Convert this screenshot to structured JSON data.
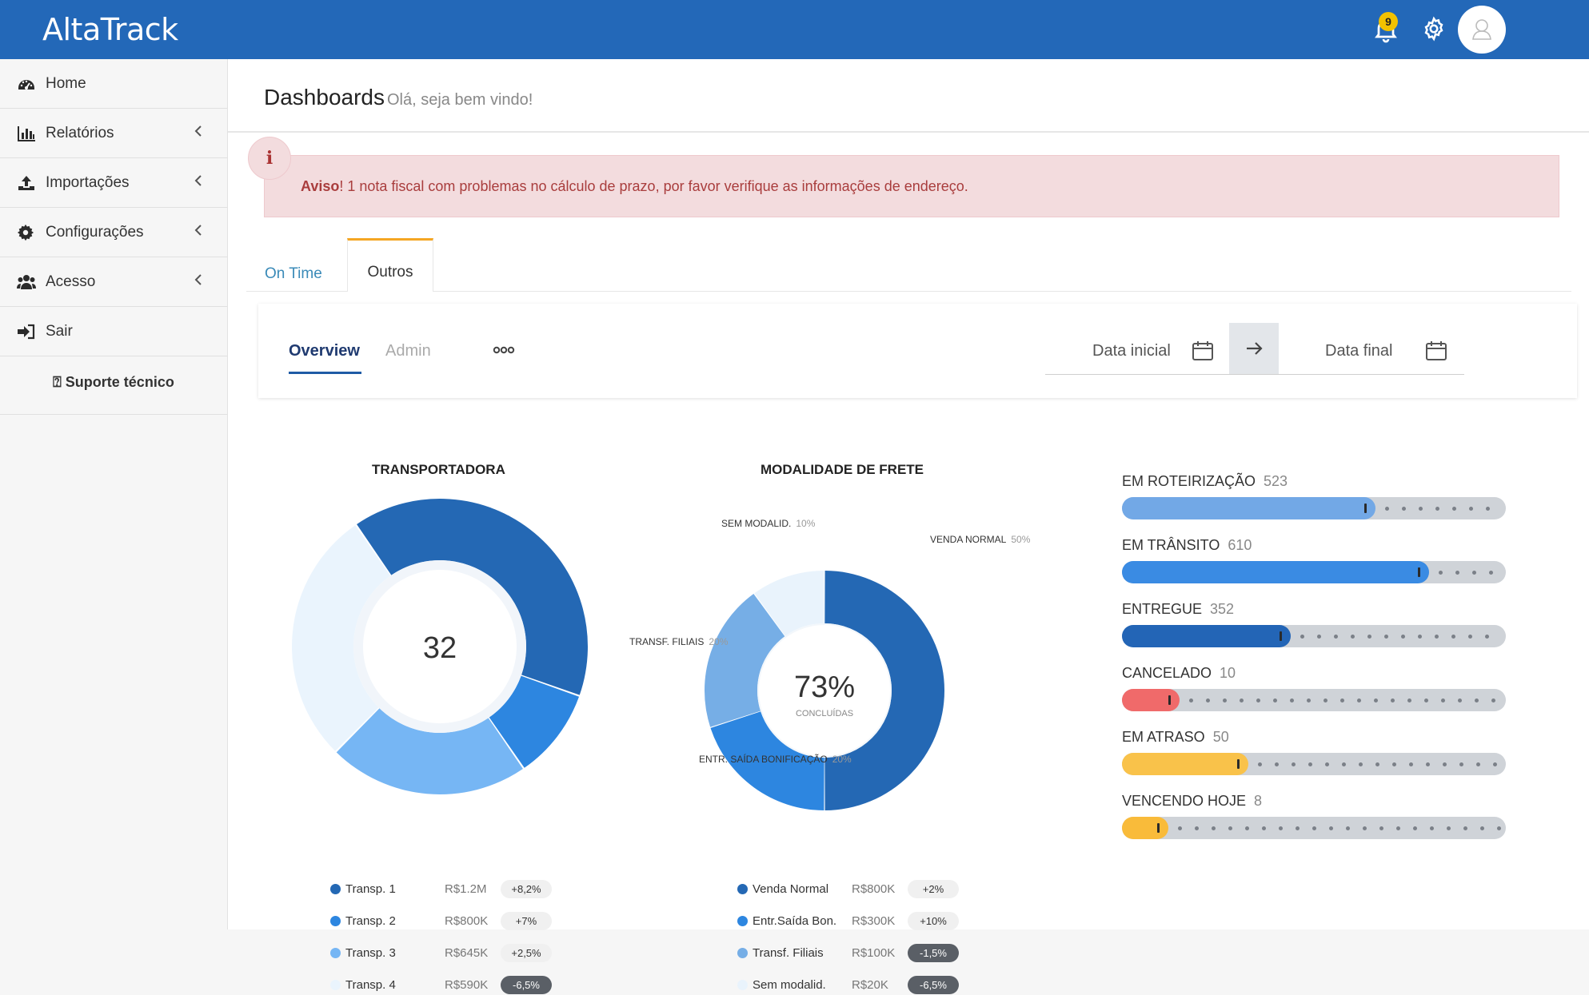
{
  "app": {
    "brand": "AltaTrack",
    "notification_count": "9"
  },
  "sidebar": {
    "items": [
      {
        "label": "Home",
        "icon": "dashboard-icon",
        "chevron": false
      },
      {
        "label": "Relatórios",
        "icon": "bar-chart-icon",
        "chevron": true
      },
      {
        "label": "Importações",
        "icon": "upload-icon",
        "chevron": true
      },
      {
        "label": "Configurações",
        "icon": "gear-icon",
        "chevron": true
      },
      {
        "label": "Acesso",
        "icon": "users-icon",
        "chevron": true
      },
      {
        "label": "Sair",
        "icon": "sign-out-icon",
        "chevron": false
      }
    ],
    "support": "⍰ Suporte técnico"
  },
  "header": {
    "title": "Dashboards",
    "subtitle": "Olá, seja bem vindo!"
  },
  "alert": {
    "strong": "Aviso",
    "message": "! 1 nota fiscal com problemas no cálculo de prazo, por favor verifique as informações de endereço."
  },
  "tabs": [
    {
      "label": "On Time",
      "active": false
    },
    {
      "label": "Outros",
      "active": true
    }
  ],
  "subtabs": {
    "overview": "Overview",
    "admin": "Admin"
  },
  "dates": {
    "start_placeholder": "Data inicial",
    "end_placeholder": "Data final"
  },
  "chart_data": [
    {
      "type": "pie",
      "title": "TRANSPORTADORA",
      "center_value": "32",
      "categories": [
        "Transp. 1",
        "Transp. 2",
        "Transp. 3",
        "Transp. 4"
      ],
      "values": [
        40,
        10,
        22,
        28
      ],
      "colors": [
        "#2468b4",
        "#2d86e0",
        "#76b6f4",
        "#eaf4fd"
      ],
      "legend": [
        {
          "name": "Transp. 1",
          "value": "R$1.2M",
          "change": "+8,2%",
          "negative": false
        },
        {
          "name": "Transp. 2",
          "value": "R$800K",
          "change": "+7%",
          "negative": false
        },
        {
          "name": "Transp. 3",
          "value": "R$645K",
          "change": "+2,5%",
          "negative": false
        },
        {
          "name": "Transp. 4",
          "value": "R$590K",
          "change": "-6,5%",
          "negative": true
        }
      ]
    },
    {
      "type": "pie",
      "title": "MODALIDADE DE FRETE",
      "center_value": "73%",
      "center_caption": "CONCLUÍDAS",
      "categories": [
        "VENDA NORMAL",
        "ENTR. SAÍDA BONIFICAÇÃO",
        "TRANSF. FILIAIS",
        "SEM MODALID."
      ],
      "values": [
        50,
        20,
        20,
        10
      ],
      "value_labels": [
        "50%",
        "20%",
        "20%",
        "10%"
      ],
      "colors": [
        "#2468b4",
        "#2d86e0",
        "#76aee6",
        "#e9f3fc"
      ],
      "legend": [
        {
          "name": "Venda Normal",
          "value": "R$800K",
          "change": "+2%",
          "negative": false
        },
        {
          "name": "Entr.Saída Bon.",
          "value": "R$300K",
          "change": "+10%",
          "negative": false
        },
        {
          "name": "Transf. Filiais",
          "value": "R$100K",
          "change": "-1,5%",
          "negative": true
        },
        {
          "name": "Sem modalid.",
          "value": "R$20K",
          "change": "-6,5%",
          "negative": true
        }
      ]
    },
    {
      "type": "bar",
      "categories": [
        "EM ROTEIRIZAÇÃO",
        "EM TRÂNSITO",
        "ENTREGUE",
        "CANCELADO",
        "EM ATRASO",
        "VENCENDO HOJE"
      ],
      "values": [
        523,
        610,
        352,
        10,
        50,
        8
      ],
      "fill_fraction": [
        0.66,
        0.8,
        0.44,
        0.15,
        0.33,
        0.12
      ],
      "colors": [
        "#72a8e6",
        "#3a8be3",
        "#2365b6",
        "#f06a6a",
        "#f9c24a",
        "#f9bb3a"
      ]
    }
  ]
}
